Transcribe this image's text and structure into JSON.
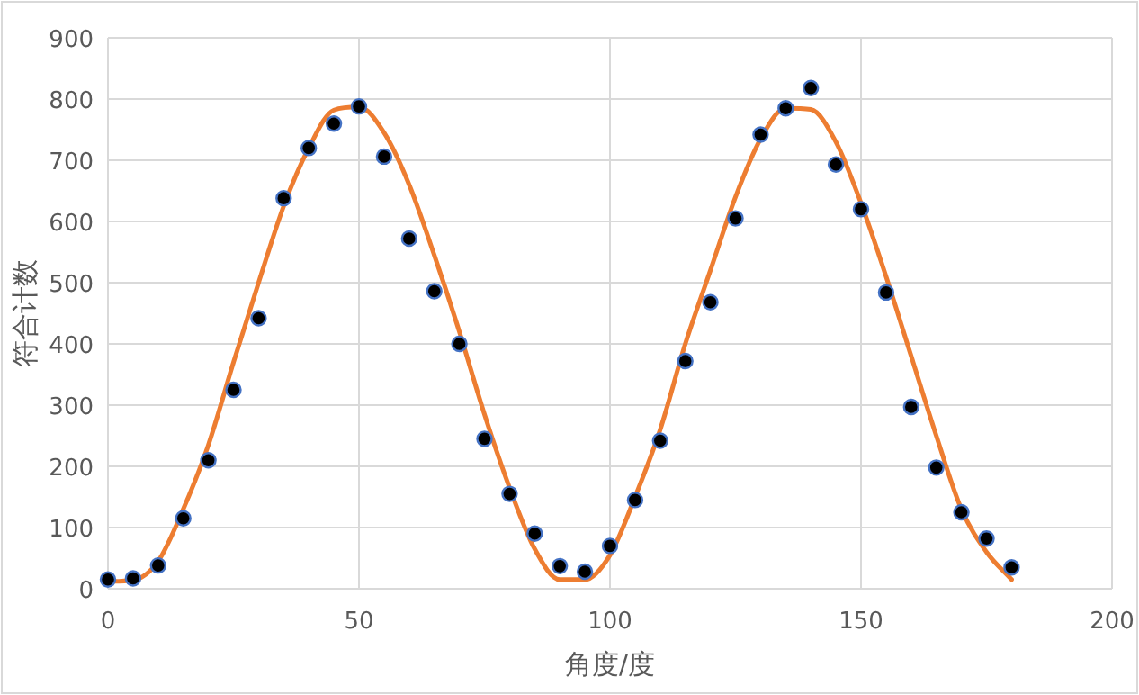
{
  "chart_data": {
    "type": "scatter",
    "xlabel": "角度/度",
    "ylabel": "符合计数",
    "xlim": [
      0,
      200
    ],
    "xticks": [
      0,
      50,
      100,
      150,
      200
    ],
    "ylim": [
      0,
      900
    ],
    "yticks": [
      0,
      100,
      200,
      300,
      400,
      500,
      600,
      700,
      800,
      900
    ],
    "grid": true,
    "series": [
      {
        "type": "line",
        "color": "#ed7d31",
        "marker": "none",
        "line_style": "solid",
        "x": [
          0,
          5,
          10,
          15,
          20,
          25,
          30,
          35,
          40,
          45,
          50,
          55,
          60,
          65,
          70,
          75,
          80,
          85,
          90,
          95,
          100,
          105,
          110,
          115,
          120,
          125,
          130,
          135,
          140,
          145,
          150,
          155,
          160,
          165,
          170,
          175,
          180
        ],
        "values": [
          12,
          14,
          45,
          130,
          235,
          370,
          500,
          625,
          720,
          782,
          787,
          745,
          660,
          545,
          420,
          285,
          165,
          65,
          15,
          15,
          55,
          150,
          260,
          400,
          520,
          640,
          735,
          785,
          783,
          730,
          630,
          510,
          380,
          250,
          130,
          60,
          15
        ]
      },
      {
        "color": "#000000",
        "marker": "circle",
        "x": [
          0,
          5,
          10,
          15,
          20,
          25,
          30,
          35,
          40,
          45,
          50,
          55,
          60,
          65,
          70,
          75,
          80,
          85,
          90,
          95,
          100,
          105,
          110,
          115,
          120,
          125,
          130,
          135,
          140,
          145,
          150,
          155,
          160,
          165,
          170,
          175,
          180
        ],
        "values": [
          15,
          17,
          38,
          115,
          210,
          325,
          442,
          638,
          720,
          760,
          788,
          706,
          572,
          486,
          400,
          245,
          155,
          90,
          37,
          28,
          70,
          145,
          242,
          372,
          468,
          605,
          742,
          785,
          818,
          693,
          620,
          484,
          297,
          198,
          125,
          82,
          35
        ]
      }
    ]
  }
}
